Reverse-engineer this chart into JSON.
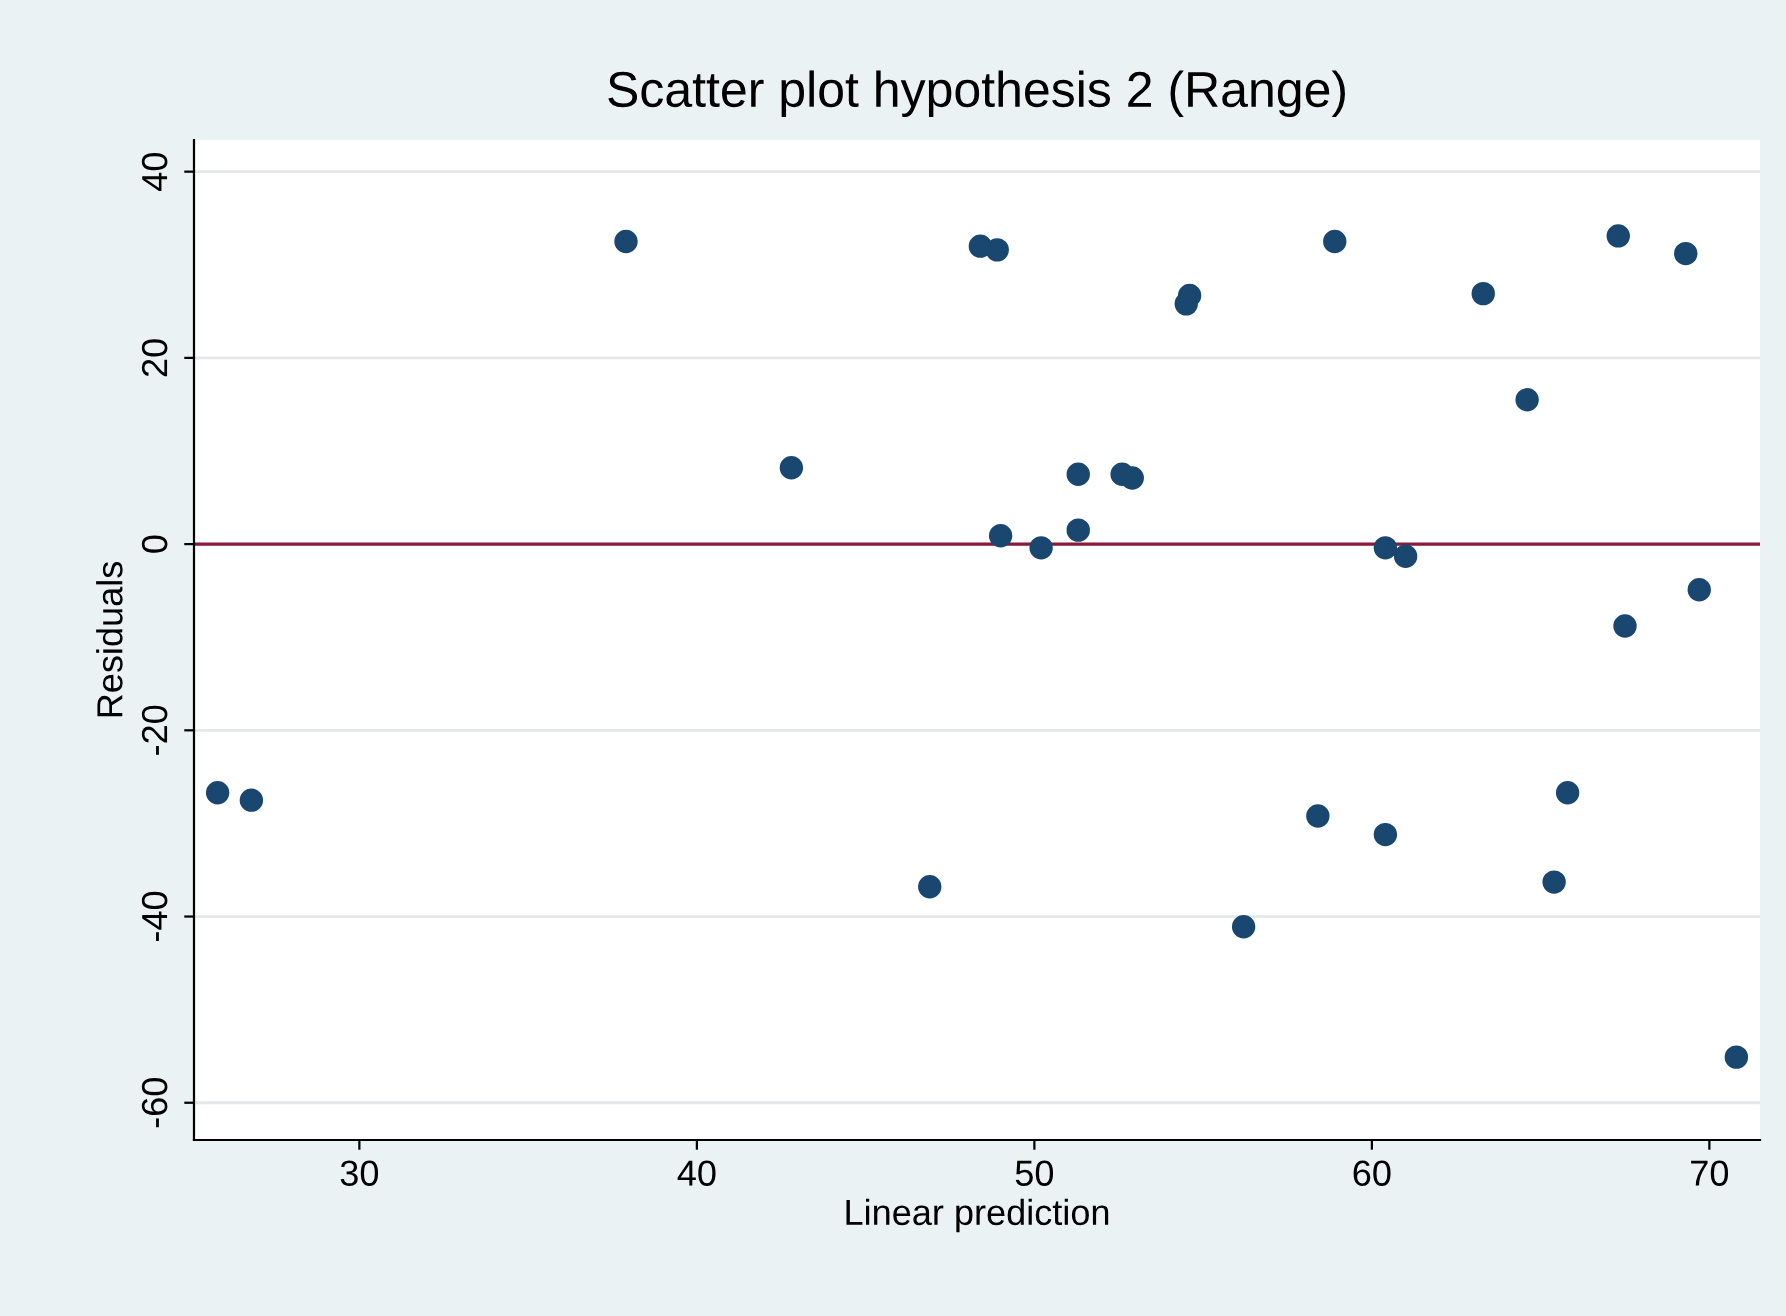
{
  "chart_data": {
    "type": "scatter",
    "title": "Scatter plot hypothesis 2 (Range)",
    "xlabel": "Linear prediction",
    "ylabel": "Residuals",
    "xlim": [
      25.1,
      71.5
    ],
    "ylim": [
      -64,
      43.4
    ],
    "xticks": [
      30,
      40,
      50,
      60,
      70
    ],
    "yticks": [
      -60,
      -40,
      -20,
      0,
      20,
      40
    ],
    "grid": "y",
    "marker": "circle",
    "ref_lines": [
      {
        "axis": "y",
        "value": 0,
        "color": "#8b1a3a"
      }
    ],
    "series": [
      {
        "color": "#1a476f",
        "x": [
          25.8,
          26.8,
          37.9,
          42.8,
          46.9,
          48.4,
          48.9,
          49.0,
          50.2,
          51.3,
          51.3,
          52.6,
          52.9,
          54.5,
          54.6,
          56.2,
          58.4,
          58.9,
          60.4,
          60.4,
          61.0,
          63.3,
          64.6,
          65.4,
          65.8,
          67.3,
          67.5,
          69.3,
          69.7,
          70.8
        ],
        "values": [
          -26.7,
          -27.5,
          32.5,
          8.2,
          -36.8,
          32.0,
          31.6,
          0.9,
          -0.4,
          7.5,
          1.5,
          7.5,
          7.1,
          25.8,
          26.7,
          -41.1,
          -29.2,
          32.5,
          -0.4,
          -31.2,
          -1.3,
          26.9,
          15.5,
          -36.3,
          -26.7,
          33.1,
          -8.8,
          31.2,
          -4.9,
          -55.1
        ]
      }
    ]
  }
}
